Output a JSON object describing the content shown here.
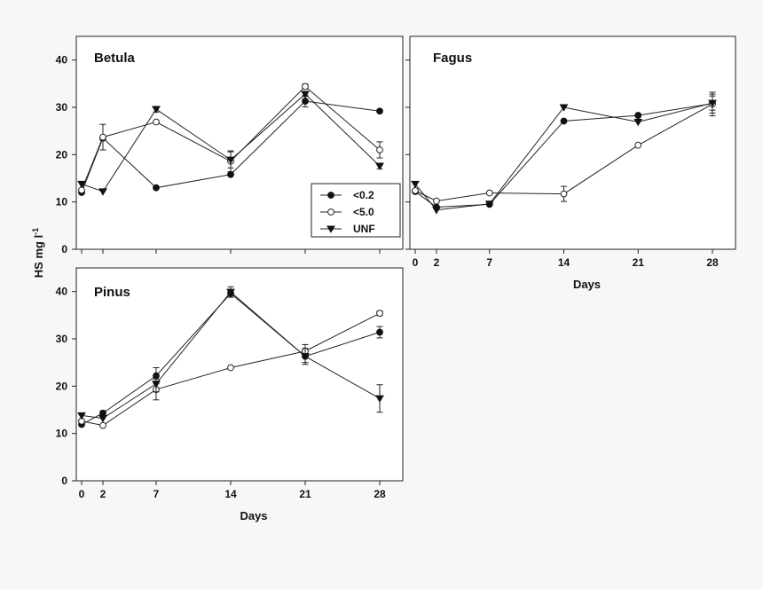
{
  "figure": {
    "ylabel": "HS mg l",
    "ylabel_sup": "-1",
    "xlabel": "Days"
  },
  "legend": {
    "entries": [
      {
        "label": "<0.2",
        "marker": "filled-circle"
      },
      {
        "label": "<5.0",
        "marker": "open-circle"
      },
      {
        "label": "UNF",
        "marker": "filled-triangle-down"
      }
    ]
  },
  "chart_data": [
    {
      "type": "line",
      "title": "Betula",
      "x": [
        0,
        2,
        7,
        14,
        21,
        28
      ],
      "xticks": [
        "0",
        "2",
        "7",
        "14",
        "21",
        "28"
      ],
      "ylim": [
        0,
        45
      ],
      "yticks": [
        "0",
        "10",
        "20",
        "30",
        "40"
      ],
      "series": [
        {
          "name": "<0.2",
          "values": [
            12,
            23.5,
            13,
            15.8,
            31.3,
            29.2
          ],
          "errors": [
            0.4,
            0.5,
            0.4,
            0.4,
            1.2,
            0.4
          ]
        },
        {
          "name": "<5.0",
          "values": [
            12.5,
            23.7,
            26.9,
            18.6,
            34.4,
            21
          ],
          "errors": [
            0.4,
            2.7,
            0.4,
            2.2,
            0.5,
            1.7
          ]
        },
        {
          "name": "UNF",
          "values": [
            13.8,
            12.2,
            29.6,
            18.9,
            32.8,
            17.6
          ],
          "errors": [
            0.4,
            0.4,
            0.6,
            1.7,
            0.5,
            0.6
          ]
        }
      ]
    },
    {
      "type": "line",
      "title": "Fagus",
      "x": [
        0,
        2,
        7,
        14,
        21,
        28
      ],
      "xticks": [
        "0",
        "2",
        "7",
        "14",
        "21",
        "28"
      ],
      "xlabel": "Days",
      "ylim": [
        0,
        45
      ],
      "yticks": [
        "0",
        "10",
        "20",
        "30",
        "40"
      ],
      "series": [
        {
          "name": "<0.2",
          "values": [
            12.2,
            8.9,
            9.5,
            27.1,
            28.3,
            30.8
          ],
          "errors": [
            0.4,
            0.4,
            0.4,
            0.4,
            0.4,
            2
          ]
        },
        {
          "name": "<5.0",
          "values": [
            12.4,
            10.2,
            11.9,
            11.7,
            22,
            30.7
          ],
          "errors": [
            0.4,
            0.4,
            0.4,
            1.6,
            0.4,
            2.5
          ]
        },
        {
          "name": "UNF",
          "values": [
            13.8,
            8.3,
            9.6,
            30,
            26.9,
            30.9
          ],
          "errors": [
            0.4,
            0.4,
            0.4,
            0.4,
            0.4,
            1.5
          ]
        }
      ]
    },
    {
      "type": "line",
      "title": "Pinus",
      "x": [
        0,
        2,
        7,
        14,
        21,
        28
      ],
      "xticks": [
        "0",
        "2",
        "7",
        "14",
        "21",
        "28"
      ],
      "xlabel": "Days",
      "ylim": [
        0,
        45
      ],
      "yticks": [
        "0",
        "10",
        "20",
        "30",
        "40"
      ],
      "series": [
        {
          "name": "<0.2",
          "values": [
            11.9,
            14.3,
            22.2,
            39.6,
            26.3,
            31.4
          ],
          "errors": [
            0.4,
            0.5,
            1.7,
            0.8,
            1.3,
            1.2
          ]
        },
        {
          "name": "<5.0",
          "values": [
            12.6,
            11.7,
            19.3,
            23.9,
            27.4,
            35.4
          ],
          "errors": [
            0.4,
            0.4,
            2.2,
            0.4,
            1.4,
            0.5
          ]
        },
        {
          "name": "UNF",
          "values": [
            13.8,
            13.2,
            20.5,
            39.9,
            26.3,
            17.4
          ],
          "errors": [
            0.4,
            0.4,
            1.7,
            1.1,
            1.7,
            2.9
          ]
        }
      ]
    }
  ]
}
